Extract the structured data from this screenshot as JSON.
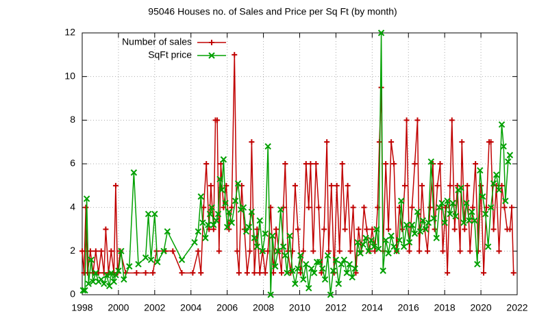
{
  "chart_data": {
    "type": "line",
    "title": "95046 Houses no. of Sales and Price per Sq Ft (by month)",
    "xlim": [
      1998,
      2022
    ],
    "xticks": [
      1998,
      2000,
      2002,
      2004,
      2006,
      2008,
      2010,
      2012,
      2014,
      2016,
      2018,
      2020,
      2022
    ],
    "ylim": [
      0,
      12
    ],
    "yticks": [
      0,
      2,
      4,
      6,
      8,
      10,
      12
    ],
    "grid": true,
    "legend": "top-left",
    "series": [
      {
        "name": "Number of sales",
        "color": "#c00000",
        "marker": "plus",
        "x": [
          1998.0,
          1998.1,
          1998.2,
          1998.3,
          1998.45,
          1998.6,
          1998.75,
          1998.9,
          1999.05,
          1999.2,
          1999.3,
          1999.45,
          1999.6,
          1999.75,
          1999.85,
          1999.95,
          2000.1,
          2000.4,
          2001.0,
          2001.5,
          2001.9,
          2002.1,
          2002.6,
          2003.0,
          2003.5,
          2004.1,
          2004.4,
          2004.55,
          2004.7,
          2004.85,
          2005.0,
          2005.1,
          2005.25,
          2005.35,
          2005.45,
          2005.55,
          2005.65,
          2005.8,
          2005.95,
          2006.1,
          2006.25,
          2006.4,
          2006.55,
          2006.65,
          2006.8,
          2006.95,
          2007.1,
          2007.25,
          2007.35,
          2007.5,
          2007.65,
          2007.8,
          2007.95,
          2008.1,
          2008.25,
          2008.4,
          2008.55,
          2008.7,
          2008.85,
          2009.0,
          2009.1,
          2009.2,
          2009.35,
          2009.5,
          2009.6,
          2009.75,
          2009.9,
          2010.05,
          2010.2,
          2010.35,
          2010.5,
          2010.6,
          2010.75,
          2010.9,
          2011.05,
          2011.2,
          2011.35,
          2011.5,
          2011.6,
          2011.75,
          2011.9,
          2012.05,
          2012.2,
          2012.35,
          2012.5,
          2012.65,
          2012.8,
          2012.95,
          2013.1,
          2013.25,
          2013.4,
          2013.55,
          2013.7,
          2013.85,
          2014.0,
          2014.15,
          2014.3,
          2014.4,
          2014.5,
          2014.6,
          2014.75,
          2014.9,
          2015.05,
          2015.2,
          2015.35,
          2015.5,
          2015.65,
          2015.8,
          2015.9,
          2016.05,
          2016.2,
          2016.35,
          2016.5,
          2016.6,
          2016.75,
          2016.9,
          2017.05,
          2017.2,
          2017.35,
          2017.45,
          2017.6,
          2017.75,
          2017.9,
          2018.05,
          2018.15,
          2018.3,
          2018.4,
          2018.55,
          2018.7,
          2018.85,
          2018.95,
          2019.1,
          2019.25,
          2019.4,
          2019.55,
          2019.7,
          2019.85,
          2020.0,
          2020.15,
          2020.3,
          2020.45,
          2020.55,
          2020.7,
          2020.85,
          2021.0,
          2021.15,
          2021.3,
          2021.45,
          2021.6,
          2021.7,
          2021.8
        ],
        "values": [
          2,
          1,
          4,
          1,
          2,
          1,
          2,
          1,
          2,
          1,
          3,
          1,
          2,
          1,
          5,
          1,
          2,
          1,
          1,
          1,
          1,
          2,
          2,
          2,
          1,
          1,
          2,
          1,
          4,
          6,
          3,
          5,
          3,
          8,
          8,
          2,
          6,
          4,
          5,
          3,
          4,
          11,
          2,
          1,
          5,
          3,
          1,
          2,
          7,
          1,
          3,
          1,
          2,
          1,
          2,
          4,
          1,
          3,
          2,
          1,
          4,
          6,
          2,
          1,
          2,
          5,
          3,
          1,
          2,
          6,
          4,
          6,
          2,
          6,
          4,
          1,
          3,
          7,
          2,
          5,
          1,
          5,
          2,
          6,
          3,
          5,
          2,
          4,
          1,
          3,
          2,
          4,
          3,
          2,
          3,
          2,
          4,
          7,
          9.5,
          2,
          6,
          3,
          7,
          6,
          2,
          4,
          3,
          5,
          8,
          2,
          4,
          6,
          8,
          2,
          5,
          3,
          2,
          4,
          6,
          3,
          5,
          6,
          2,
          4,
          1,
          5,
          8,
          3,
          5,
          2,
          7,
          3,
          5,
          2,
          4,
          6,
          2,
          5,
          1,
          4,
          7,
          7,
          3,
          5,
          2,
          5,
          4,
          3,
          3,
          4,
          1
        ]
      },
      {
        "name": "SqFt price",
        "color": "#00a000",
        "marker": "cross",
        "x": [
          1998.05,
          1998.15,
          1998.25,
          1998.35,
          1998.5,
          1998.6,
          1998.75,
          1998.9,
          1999.05,
          1999.2,
          1999.35,
          1999.5,
          1999.6,
          1999.75,
          1999.85,
          2000.0,
          2000.15,
          2000.3,
          2000.6,
          2000.85,
          2001.1,
          2001.5,
          2001.65,
          2001.8,
          2002.0,
          2002.15,
          2002.5,
          2002.7,
          2003.5,
          2004.2,
          2004.4,
          2004.55,
          2004.65,
          2004.8,
          2004.95,
          2005.05,
          2005.15,
          2005.25,
          2005.4,
          2005.5,
          2005.6,
          2005.7,
          2005.8,
          2005.9,
          2006.0,
          2006.1,
          2006.25,
          2006.45,
          2006.6,
          2006.75,
          2006.9,
          2007.05,
          2007.2,
          2007.35,
          2007.5,
          2007.65,
          2007.8,
          2007.95,
          2008.1,
          2008.25,
          2008.4,
          2008.5,
          2008.65,
          2008.8,
          2008.95,
          2009.1,
          2009.2,
          2009.3,
          2009.45,
          2009.6,
          2009.75,
          2009.9,
          2010.05,
          2010.2,
          2010.35,
          2010.5,
          2010.65,
          2010.8,
          2010.95,
          2011.1,
          2011.25,
          2011.4,
          2011.55,
          2011.7,
          2011.85,
          2012.0,
          2012.15,
          2012.3,
          2012.45,
          2012.6,
          2012.75,
          2012.9,
          2013.05,
          2013.2,
          2013.35,
          2013.5,
          2013.65,
          2013.8,
          2013.95,
          2014.1,
          2014.25,
          2014.35,
          2014.5,
          2014.6,
          2014.75,
          2014.9,
          2015.05,
          2015.2,
          2015.35,
          2015.5,
          2015.6,
          2015.75,
          2015.9,
          2016.05,
          2016.2,
          2016.35,
          2016.5,
          2016.65,
          2016.8,
          2016.95,
          2017.1,
          2017.25,
          2017.4,
          2017.55,
          2017.7,
          2017.85,
          2018.0,
          2018.15,
          2018.3,
          2018.45,
          2018.6,
          2018.75,
          2018.9,
          2019.05,
          2019.2,
          2019.35,
          2019.5,
          2019.65,
          2019.8,
          2019.95,
          2020.1,
          2020.25,
          2020.4,
          2020.55,
          2020.7,
          2020.85,
          2021.0,
          2021.15,
          2021.25,
          2021.35,
          2021.5,
          2021.6
        ],
        "values": [
          0.2,
          0.2,
          4.4,
          0.5,
          1.6,
          0.6,
          1.0,
          0.6,
          0.7,
          0.5,
          0.9,
          0.4,
          1.0,
          0.6,
          0.9,
          1.1,
          2.0,
          0.7,
          1.3,
          5.6,
          1.4,
          1.7,
          3.7,
          1.6,
          3.7,
          1.5,
          2.0,
          2.9,
          1.6,
          2.4,
          2.9,
          4.5,
          3.3,
          2.6,
          3.2,
          3.7,
          4.0,
          3.2,
          3.4,
          3.7,
          5.3,
          4.8,
          6.2,
          4.2,
          3.1,
          3.8,
          3.3,
          4.3,
          5.1,
          3.9,
          4.0,
          2.9,
          3.1,
          3.8,
          2.6,
          2.2,
          3.4,
          2.0,
          2.8,
          6.8,
          0.0,
          2.7,
          1.3,
          2.0,
          3.9,
          2.2,
          1.8,
          1.0,
          2.7,
          1.1,
          0.5,
          1.2,
          1.8,
          0.7,
          1.4,
          0.3,
          1.2,
          1.0,
          1.5,
          1.5,
          1.2,
          0.7,
          1.8,
          0.0,
          1.1,
          1.6,
          0.5,
          1.4,
          1.6,
          1.0,
          1.4,
          0.8,
          1.2,
          2.4,
          1.9,
          2.3,
          2.6,
          2.0,
          2.5,
          2.2,
          3.0,
          2.1,
          12.0,
          1.1,
          2.5,
          1.9,
          2.7,
          2.2,
          2.0,
          2.5,
          4.3,
          2.2,
          3.2,
          2.4,
          3.2,
          2.8,
          3.8,
          2.9,
          3.4,
          3.0,
          3.3,
          6.1,
          3.5,
          2.6,
          4.0,
          4.2,
          3.3,
          4.3,
          3.7,
          4.2,
          3.6,
          4.8,
          4.9,
          3.3,
          4.2,
          3.4,
          3.8,
          3.4,
          1.4,
          5.7,
          4.5,
          3.7,
          2.2,
          4.0,
          5.1,
          5.5,
          4.8,
          7.8,
          6.8,
          4.3,
          6.1,
          6.4
        ]
      }
    ]
  }
}
